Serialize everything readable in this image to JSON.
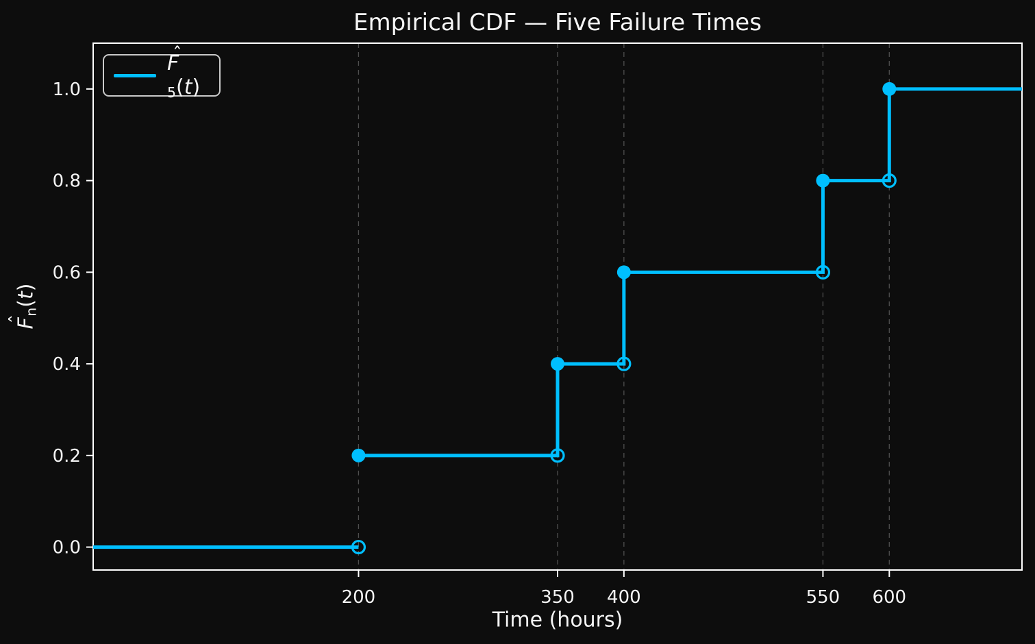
{
  "chart_data": {
    "type": "step",
    "title": "Empirical CDF — Five Failure Times",
    "xlabel": "Time (hours)",
    "ylabel_parts": {
      "hat": "ˆ",
      "letter": "F",
      "sub": "n",
      "open": "(",
      "var": "t",
      "close": ")"
    },
    "legend": {
      "position": "upper left",
      "label_parts": {
        "hat": "ˆ",
        "letter": "F",
        "sub": "5",
        "open": "(",
        "var": "t",
        "close": ")"
      }
    },
    "series": [
      {
        "name": "F̂5(t)",
        "failure_times": [
          200,
          350,
          400,
          550,
          600
        ],
        "cdf_values": [
          0.2,
          0.4,
          0.6,
          0.8,
          1.0
        ],
        "pre_step_value": 0.0,
        "right_continuation_value": 1.0
      }
    ],
    "xlim": [
      0,
      700
    ],
    "ylim": [
      -0.05,
      1.1
    ],
    "xticks": [
      {
        "value": 200,
        "label": "200"
      },
      {
        "value": 350,
        "label": "350"
      },
      {
        "value": 400,
        "label": "400"
      },
      {
        "value": 550,
        "label": "550"
      },
      {
        "value": 600,
        "label": "600"
      }
    ],
    "yticks": [
      {
        "value": 0.0,
        "label": "0.0"
      },
      {
        "value": 0.2,
        "label": "0.2"
      },
      {
        "value": 0.4,
        "label": "0.4"
      },
      {
        "value": 0.6,
        "label": "0.6"
      },
      {
        "value": 0.8,
        "label": "0.8"
      },
      {
        "value": 1.0,
        "label": "1.0"
      }
    ],
    "grid": {
      "axis": "x",
      "style": "dashed",
      "on": true
    },
    "marker_style": {
      "jump_points": "filled circle",
      "pre_jump_limits": "open circle"
    }
  },
  "colors": {
    "background": "#0d0d0d",
    "line": "#00bfff",
    "spine": "#ffffff",
    "text": "#f5f5f5",
    "grid": "#4f4f4f",
    "tick": "#ffffff",
    "legend_border": "#c9c9c9"
  }
}
